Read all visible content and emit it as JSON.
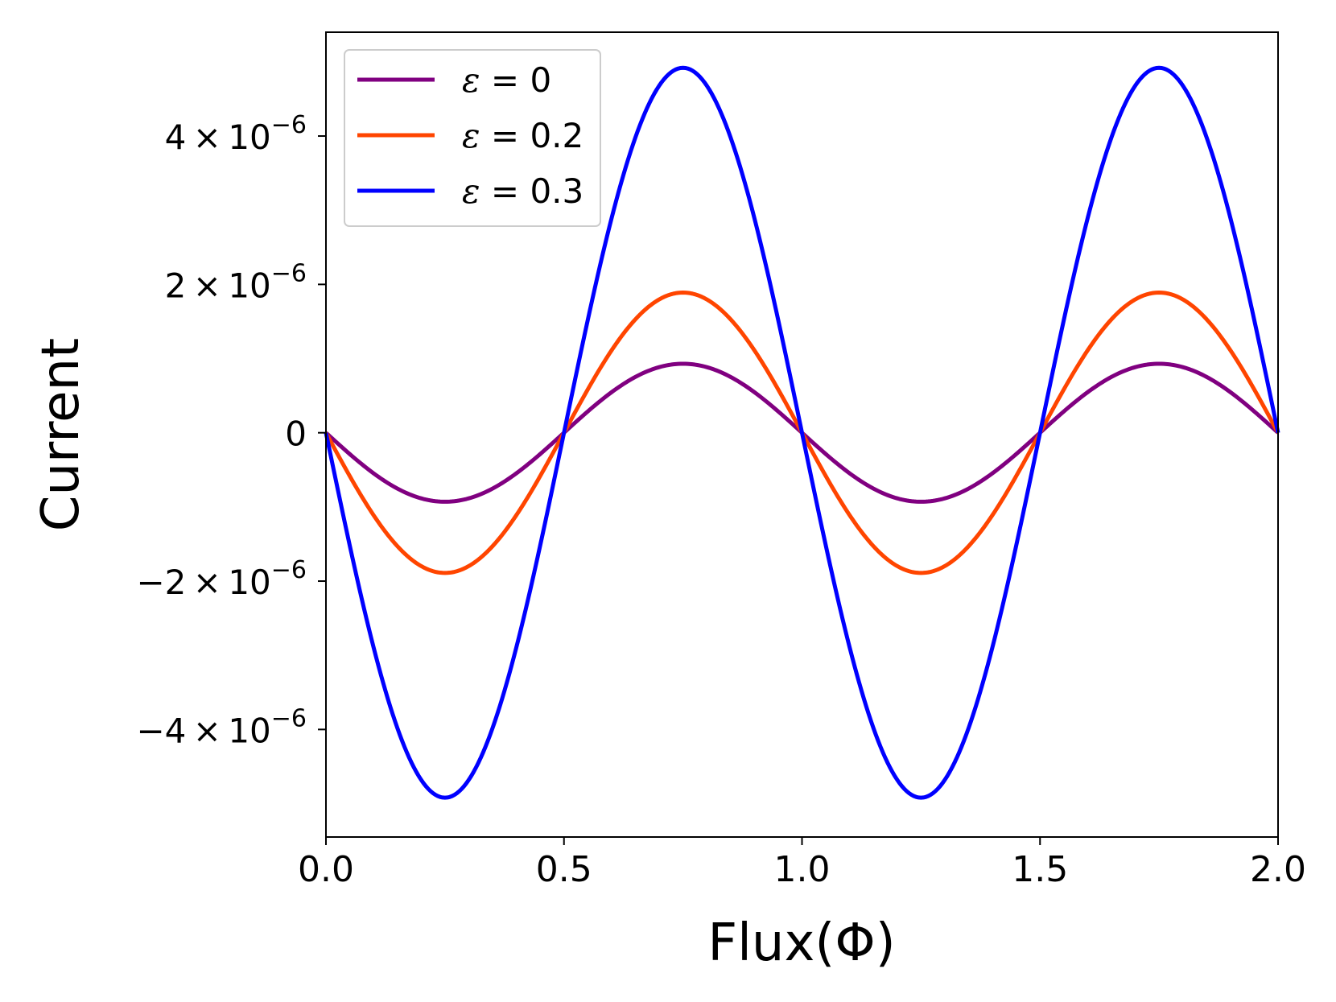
{
  "chart_data": {
    "type": "line",
    "xlabel": "Flux(Φ)",
    "ylabel": "Current",
    "xlim": [
      0.0,
      2.0
    ],
    "ylim": [
      -5.45e-06,
      5.4e-06
    ],
    "xticks": [
      {
        "value": 0.0,
        "label": "0.0"
      },
      {
        "value": 0.5,
        "label": "0.5"
      },
      {
        "value": 1.0,
        "label": "1.0"
      },
      {
        "value": 1.5,
        "label": "1.5"
      },
      {
        "value": 2.0,
        "label": "2.0"
      }
    ],
    "yticks": [
      {
        "value": -4e-06,
        "mant": "−4",
        "exp": "−6"
      },
      {
        "value": -2e-06,
        "mant": "−2",
        "exp": "−6"
      },
      {
        "value": 0,
        "mant": "0",
        "exp": ""
      },
      {
        "value": 2e-06,
        "mant": "2",
        "exp": "−6"
      },
      {
        "value": 4e-06,
        "mant": "4",
        "exp": "−6"
      }
    ],
    "legend_position": "top-left",
    "grid": false,
    "series": [
      {
        "name": "ε = 0",
        "color": "#800080",
        "form": "-A·sin(2πΦ)",
        "amplitude": 9.3e-07,
        "x": [
          0,
          0.25,
          0.5,
          0.75,
          1.0,
          1.25,
          1.5,
          1.75,
          2.0
        ],
        "y": [
          0,
          -9.3e-07,
          0,
          9.3e-07,
          0,
          -9.3e-07,
          0,
          9.3e-07,
          0
        ]
      },
      {
        "name": "ε = 0.2",
        "color": "#ff4500",
        "form": "-A·sin(2πΦ)",
        "amplitude": 1.89e-06,
        "x": [
          0,
          0.25,
          0.5,
          0.75,
          1.0,
          1.25,
          1.5,
          1.75,
          2.0
        ],
        "y": [
          0,
          -1.89e-06,
          0,
          1.89e-06,
          0,
          -1.89e-06,
          0,
          1.89e-06,
          0
        ]
      },
      {
        "name": "ε = 0.3",
        "color": "#0000ff",
        "form": "-A·sin(2πΦ)",
        "amplitude": 4.92e-06,
        "x": [
          0,
          0.25,
          0.5,
          0.75,
          1.0,
          1.25,
          1.5,
          1.75,
          2.0
        ],
        "y": [
          0,
          -4.92e-06,
          0,
          4.92e-06,
          0,
          -4.92e-06,
          0,
          4.92e-06,
          0
        ]
      }
    ]
  }
}
